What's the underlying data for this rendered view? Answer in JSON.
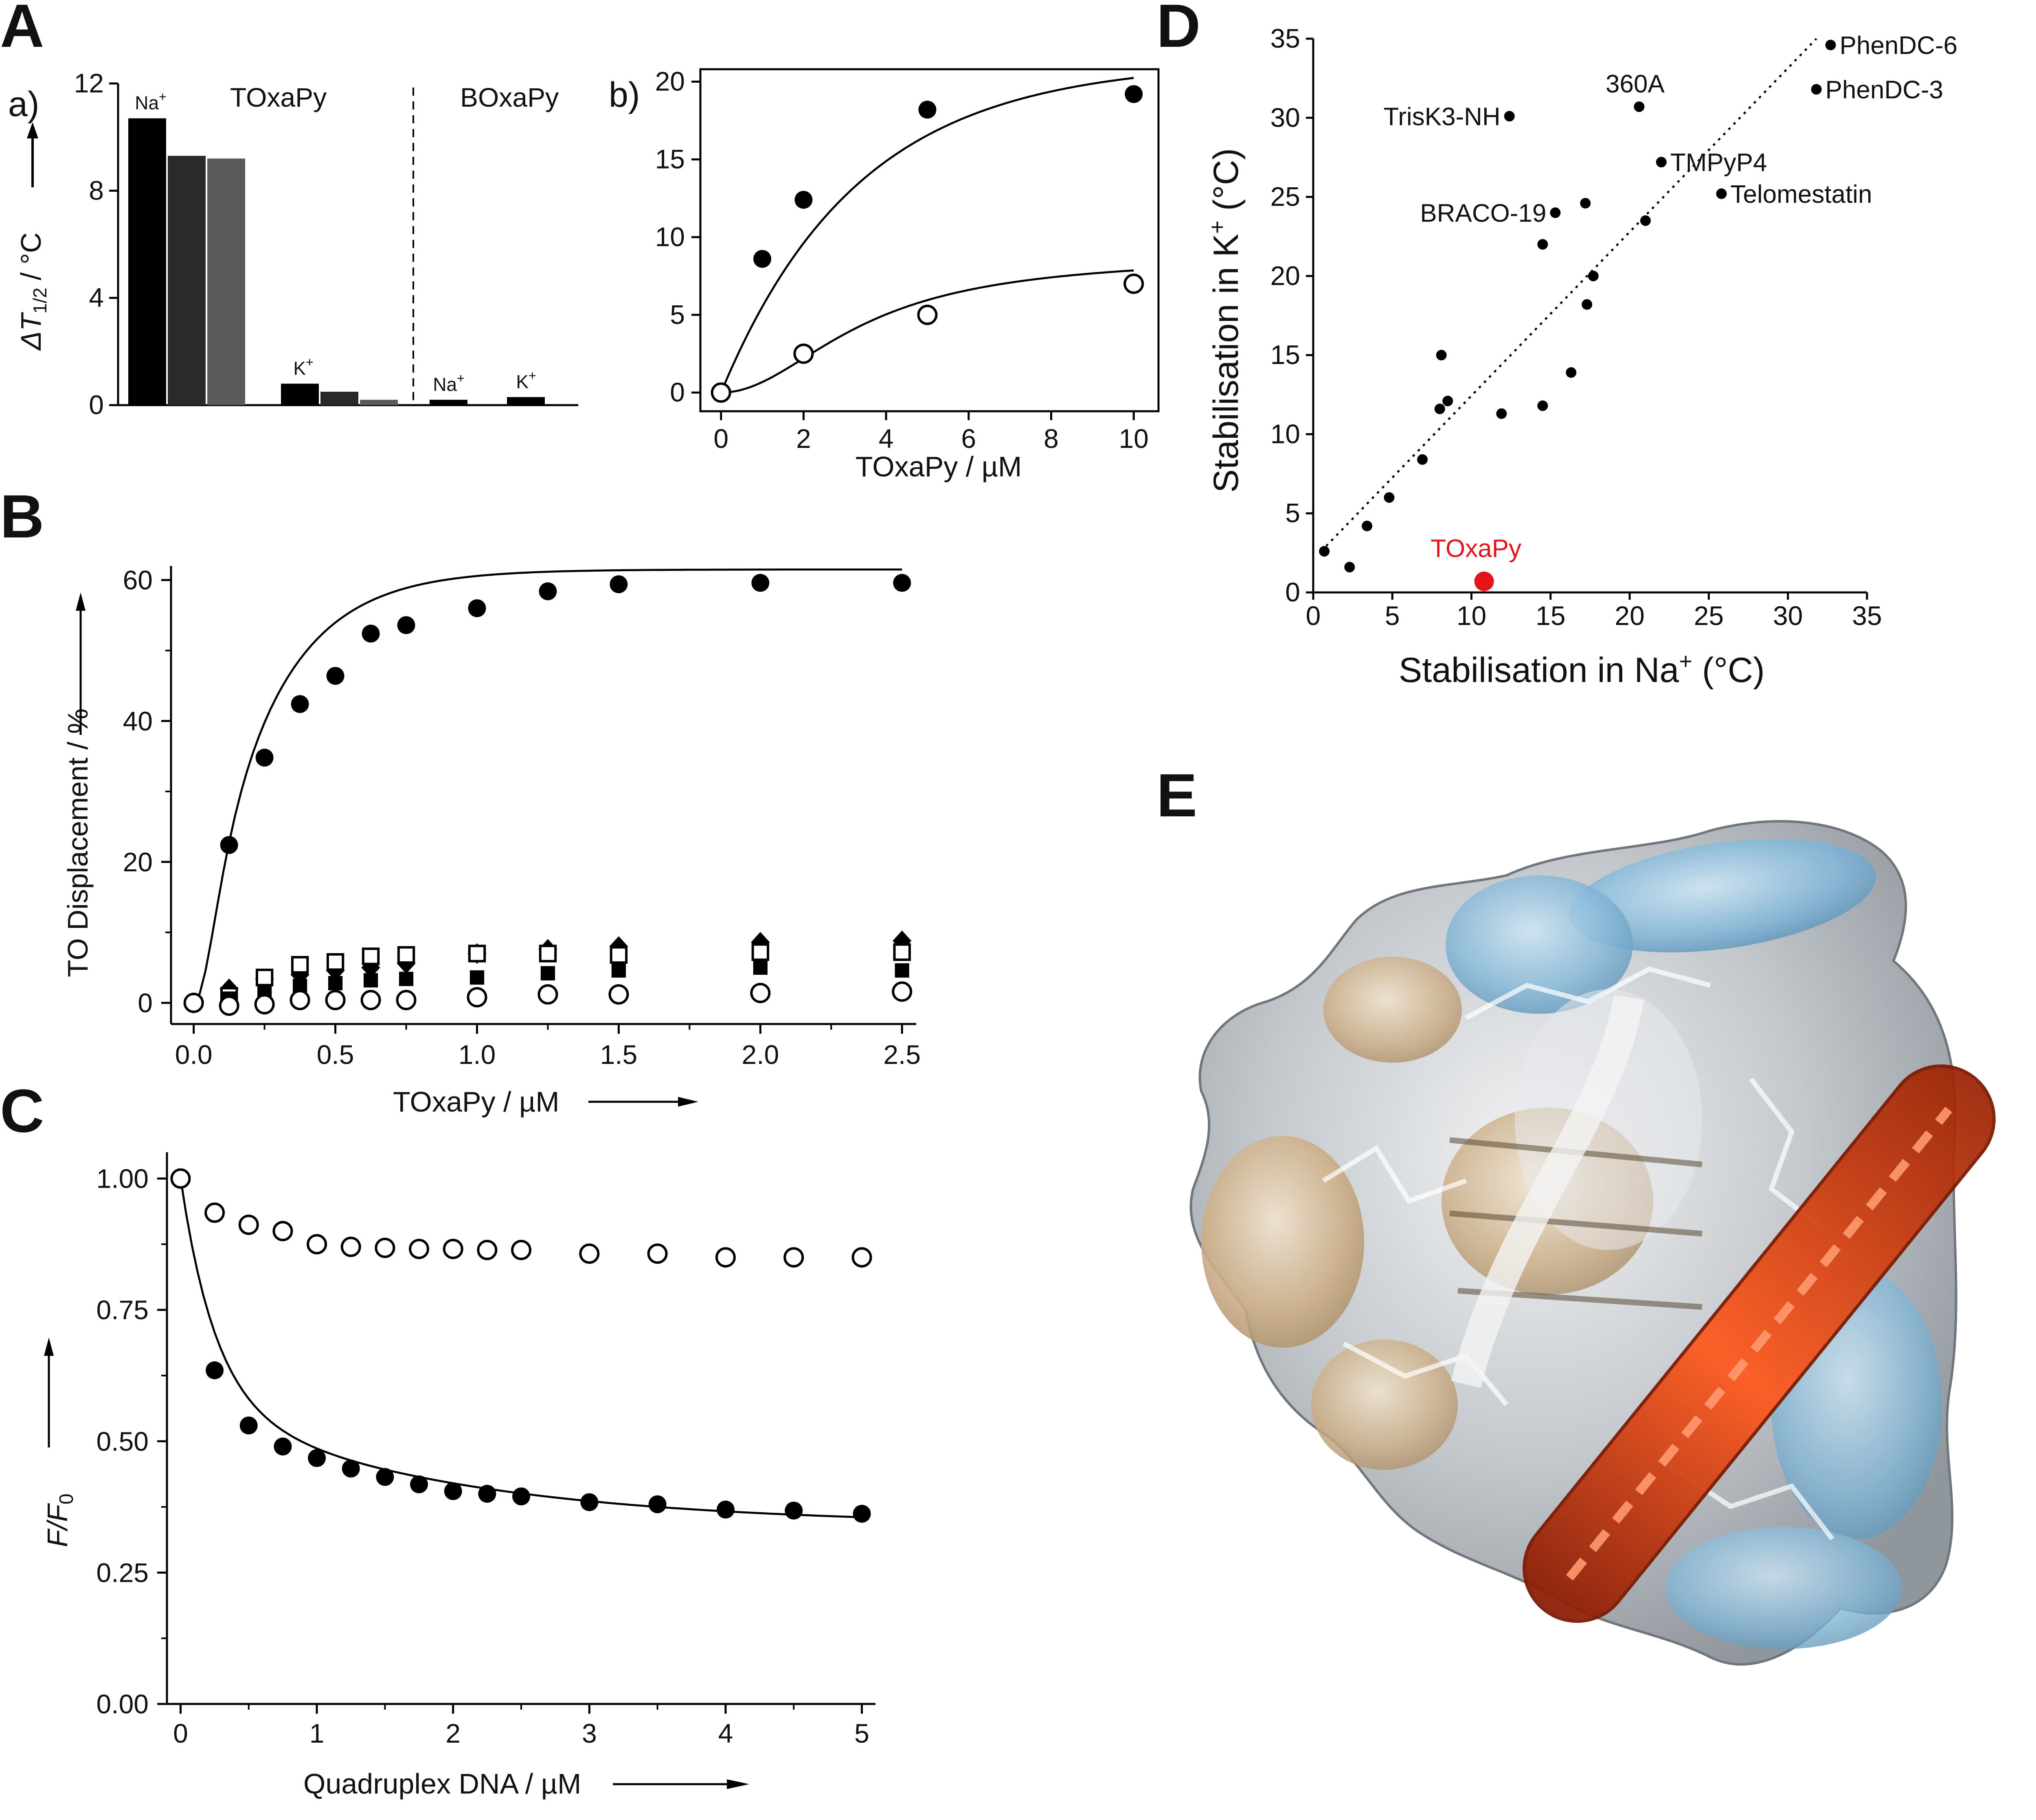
{
  "panels": {
    "A": "A",
    "B": "B",
    "C": "C",
    "D": "D",
    "E": "E"
  },
  "colors": {
    "black": "#000000",
    "dark_gray": "#2a2a2a",
    "mid_gray": "#5a5a5a",
    "light_gray": "#9a9a9a",
    "highlight_red": "#e4141b",
    "ligand_orange": "#d8360b",
    "surface_tan": "#c8ad88",
    "surface_blue": "#7fb4d6",
    "surface_gray": "#bfc4c8"
  },
  "chart_data": [
    {
      "id": "Aa",
      "type": "bar",
      "subpanel_label": "a)",
      "ylabel": "ΔT1/2 / °C",
      "ylabel_main": "ΔT",
      "ylabel_sub": "1/2",
      "ylabel_unit": "/ °C",
      "ylim": [
        0,
        12
      ],
      "yticks": [
        0,
        4,
        8,
        12
      ],
      "group_labels": [
        "TOxaPy",
        "BOxaPy"
      ],
      "divider": "dashed",
      "series_colors": [
        "#000000",
        "#2a2a2a",
        "#5a5a5a",
        "#9a9a9a"
      ],
      "groups": [
        {
          "compound": "TOxaPy",
          "cation": "Na+",
          "cation_base": "Na",
          "cation_sup": "+",
          "values": [
            10.7,
            9.3,
            9.2
          ]
        },
        {
          "compound": "TOxaPy",
          "cation": "K+",
          "cation_base": "K",
          "cation_sup": "+",
          "values": [
            0.8,
            0.5,
            0.2
          ]
        },
        {
          "compound": "BOxaPy",
          "cation": "Na+",
          "cation_base": "Na",
          "cation_sup": "+",
          "values": [
            0.2
          ]
        },
        {
          "compound": "BOxaPy",
          "cation": "K+",
          "cation_base": "K",
          "cation_sup": "+",
          "values": [
            0.3
          ]
        }
      ]
    },
    {
      "id": "Ab",
      "type": "scatter",
      "subpanel_label": "b)",
      "xlabel": "TOxaPy / µM",
      "xlim": [
        0,
        10
      ],
      "xticks": [
        0,
        2,
        4,
        6,
        8,
        10
      ],
      "ylim": [
        0,
        20
      ],
      "yticks": [
        0,
        5,
        10,
        15,
        20
      ],
      "series": [
        {
          "marker": "filled-circle",
          "x": [
            0,
            1,
            2,
            5,
            10
          ],
          "y": [
            0,
            8.6,
            12.4,
            18.2,
            19.2
          ]
        },
        {
          "marker": "open-circle",
          "x": [
            0,
            2,
            5,
            10
          ],
          "y": [
            0,
            2.5,
            5.0,
            7.0
          ]
        }
      ]
    },
    {
      "id": "B",
      "type": "scatter",
      "xlabel": "TOxaPy / µM",
      "ylabel": "TO Displacement / %",
      "xlim": [
        -0.08,
        2.55
      ],
      "xticks": [
        0.0,
        0.5,
        1.0,
        1.5,
        2.0,
        2.5
      ],
      "ylim": [
        -3,
        62
      ],
      "yticks": [
        0,
        20,
        40,
        60
      ],
      "series": [
        {
          "marker": "filled-circle",
          "x": [
            0,
            0.125,
            0.25,
            0.375,
            0.5,
            0.625,
            0.75,
            1.0,
            1.25,
            1.5,
            2.0,
            2.5
          ],
          "y": [
            0,
            22.4,
            34.8,
            42.4,
            46.4,
            52.4,
            53.6,
            56.0,
            58.4,
            59.4,
            59.6,
            59.6
          ]
        },
        {
          "marker": "filled-diamond",
          "x": [
            0,
            0.125,
            0.25,
            0.375,
            0.5,
            0.625,
            0.75,
            1.0,
            1.25,
            1.5,
            2.0,
            2.5
          ],
          "y": [
            0,
            2.0,
            3.4,
            4.0,
            4.6,
            5.0,
            5.6,
            7.0,
            7.6,
            8.0,
            8.6,
            8.8
          ]
        },
        {
          "marker": "open-square",
          "x": [
            0.125,
            0.25,
            0.375,
            0.5,
            0.625,
            0.75,
            1.0,
            1.25,
            1.5,
            2.0,
            2.5
          ],
          "y": [
            1.0,
            3.6,
            5.4,
            5.8,
            6.6,
            6.8,
            7.0,
            7.0,
            6.8,
            7.2,
            7.2
          ]
        },
        {
          "marker": "filled-square",
          "x": [
            0.125,
            0.25,
            0.375,
            0.5,
            0.625,
            0.75,
            1.0,
            1.25,
            1.5,
            2.0,
            2.5
          ],
          "y": [
            0.6,
            1.6,
            2.4,
            2.8,
            3.2,
            3.4,
            3.6,
            4.2,
            4.6,
            5.0,
            4.6
          ]
        },
        {
          "marker": "open-circle",
          "x": [
            0,
            0.125,
            0.25,
            0.375,
            0.5,
            0.625,
            0.75,
            1.0,
            1.25,
            1.5,
            2.0,
            2.5
          ],
          "y": [
            0,
            -0.4,
            -0.2,
            0.4,
            0.4,
            0.4,
            0.4,
            0.8,
            1.2,
            1.2,
            1.4,
            1.6
          ]
        }
      ]
    },
    {
      "id": "C",
      "type": "scatter",
      "xlabel": "Quadruplex DNA / µM",
      "ylabel": "F/F0",
      "ylabel_main": "F/F",
      "ylabel_sub": "0",
      "xlim": [
        -0.1,
        5.1
      ],
      "xticks": [
        0,
        1,
        2,
        3,
        4,
        5
      ],
      "ylim": [
        0,
        1.05
      ],
      "yticks": [
        "0.00",
        "0.25",
        "0.50",
        "0.75",
        "1.00"
      ],
      "series": [
        {
          "marker": "open-circle",
          "x": [
            0,
            0.25,
            0.5,
            0.75,
            1.0,
            1.25,
            1.5,
            1.75,
            2.0,
            2.25,
            2.5,
            3.0,
            3.5,
            4.0,
            4.5,
            5.0
          ],
          "y": [
            1.0,
            0.935,
            0.912,
            0.9,
            0.875,
            0.87,
            0.868,
            0.866,
            0.866,
            0.864,
            0.864,
            0.857,
            0.857,
            0.85,
            0.85,
            0.85
          ]
        },
        {
          "marker": "filled-circle",
          "x": [
            0.25,
            0.5,
            0.75,
            1.0,
            1.25,
            1.5,
            1.75,
            2.0,
            2.25,
            2.5,
            3.0,
            3.5,
            4.0,
            4.5,
            5.0
          ],
          "y": [
            0.635,
            0.53,
            0.49,
            0.468,
            0.448,
            0.432,
            0.418,
            0.405,
            0.4,
            0.395,
            0.384,
            0.38,
            0.37,
            0.368,
            0.362
          ]
        }
      ]
    },
    {
      "id": "D",
      "type": "scatter",
      "xlabel": "Stabilisation in Na+ (°C)",
      "xlabel_main": "Stabilisation in Na",
      "xlabel_sup": "+",
      "xlabel_tail": " (°C)",
      "ylabel": "Stabilisation in K+ (°C)",
      "ylabel_main": "Stabilisation in K",
      "ylabel_sup": "+",
      "ylabel_tail": " (°C)",
      "xlim": [
        0,
        35
      ],
      "ylim": [
        0,
        35
      ],
      "xticks": [
        0,
        5,
        10,
        15,
        20,
        25,
        30,
        35
      ],
      "yticks": [
        0,
        5,
        10,
        15,
        20,
        25,
        30,
        35
      ],
      "fit_line": {
        "style": "dotted",
        "x": [
          0.5,
          31.8
        ],
        "y": [
          2.6,
          35.0
        ]
      },
      "points": [
        {
          "x": 0.7,
          "y": 2.6,
          "label": ""
        },
        {
          "x": 2.3,
          "y": 1.6,
          "label": ""
        },
        {
          "x": 3.4,
          "y": 4.2,
          "label": ""
        },
        {
          "x": 4.8,
          "y": 6.0,
          "label": ""
        },
        {
          "x": 6.9,
          "y": 8.4,
          "label": ""
        },
        {
          "x": 8.0,
          "y": 11.6,
          "label": ""
        },
        {
          "x": 8.5,
          "y": 12.1,
          "label": ""
        },
        {
          "x": 8.1,
          "y": 15.0,
          "label": ""
        },
        {
          "x": 11.9,
          "y": 11.3,
          "label": ""
        },
        {
          "x": 14.5,
          "y": 11.8,
          "label": ""
        },
        {
          "x": 16.3,
          "y": 13.9,
          "label": ""
        },
        {
          "x": 17.3,
          "y": 18.2,
          "label": ""
        },
        {
          "x": 17.7,
          "y": 20.0,
          "label": ""
        },
        {
          "x": 14.5,
          "y": 22.0,
          "label": ""
        },
        {
          "x": 15.3,
          "y": 24.0,
          "label": "BRACO-19"
        },
        {
          "x": 17.2,
          "y": 24.6,
          "label": ""
        },
        {
          "x": 21.0,
          "y": 23.5,
          "label": ""
        },
        {
          "x": 22.0,
          "y": 27.2,
          "label": "TMPyP4"
        },
        {
          "x": 25.8,
          "y": 25.2,
          "label": "Telomestatin"
        },
        {
          "x": 12.4,
          "y": 30.1,
          "label": "TrisK3-NH"
        },
        {
          "x": 20.6,
          "y": 30.7,
          "label": "360A"
        },
        {
          "x": 31.8,
          "y": 31.8,
          "label": "PhenDC-3"
        },
        {
          "x": 32.7,
          "y": 34.6,
          "label": "PhenDC-6"
        }
      ],
      "highlight": {
        "x": 10.8,
        "y": 0.7,
        "label": "TOxaPy",
        "color": "#e4141b"
      }
    }
  ]
}
